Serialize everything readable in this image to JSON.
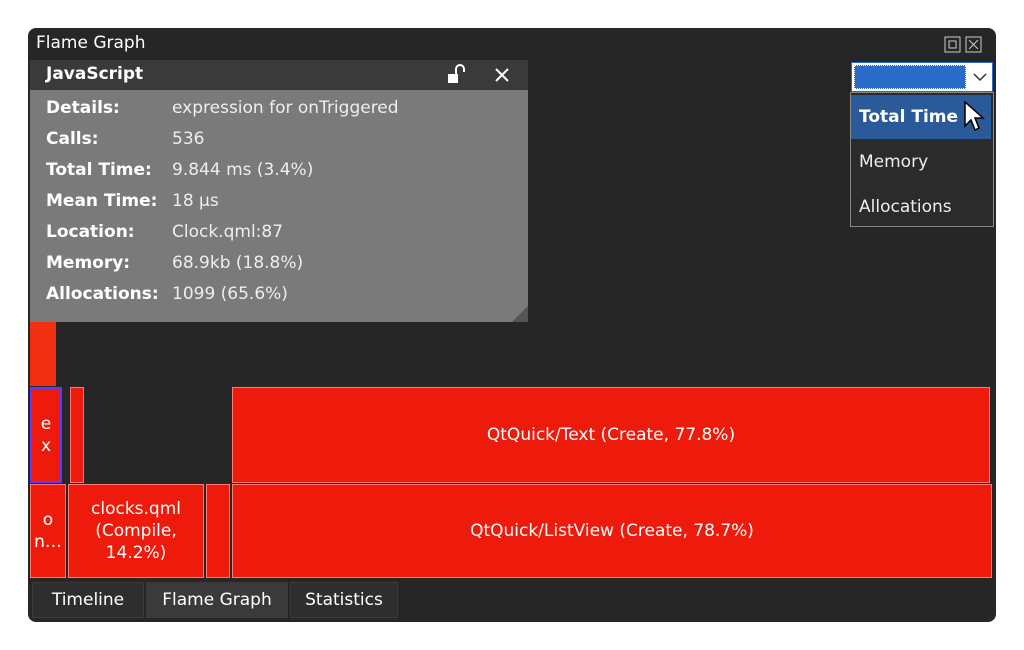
{
  "window": {
    "title": "Flame Graph"
  },
  "details_popup": {
    "title": "JavaScript",
    "rows": [
      [
        "Details:",
        "expression for onTriggered"
      ],
      [
        "Calls:",
        "536"
      ],
      [
        "Total Time:",
        "9.844 ms (3.4%)"
      ],
      [
        "Mean Time:",
        "18 µs"
      ],
      [
        "Location:",
        "Clock.qml:87"
      ],
      [
        "Memory:",
        "68.9kb (18.8%)"
      ],
      [
        "Allocations:",
        "1099 (65.6%)"
      ]
    ]
  },
  "mode_dropdown": {
    "options": [
      "Total Time",
      "Memory",
      "Allocations"
    ],
    "selected": 0
  },
  "flame": {
    "row1": [
      "ex",
      "QtQuick/Text (Create, 77.8%)"
    ],
    "row2": [
      "on…",
      "clocks.qml (Compile, 14.2%)",
      "QtQuick/ListView (Create, 78.7%)"
    ]
  },
  "tabs": [
    "Timeline",
    "Flame Graph",
    "Statistics"
  ]
}
